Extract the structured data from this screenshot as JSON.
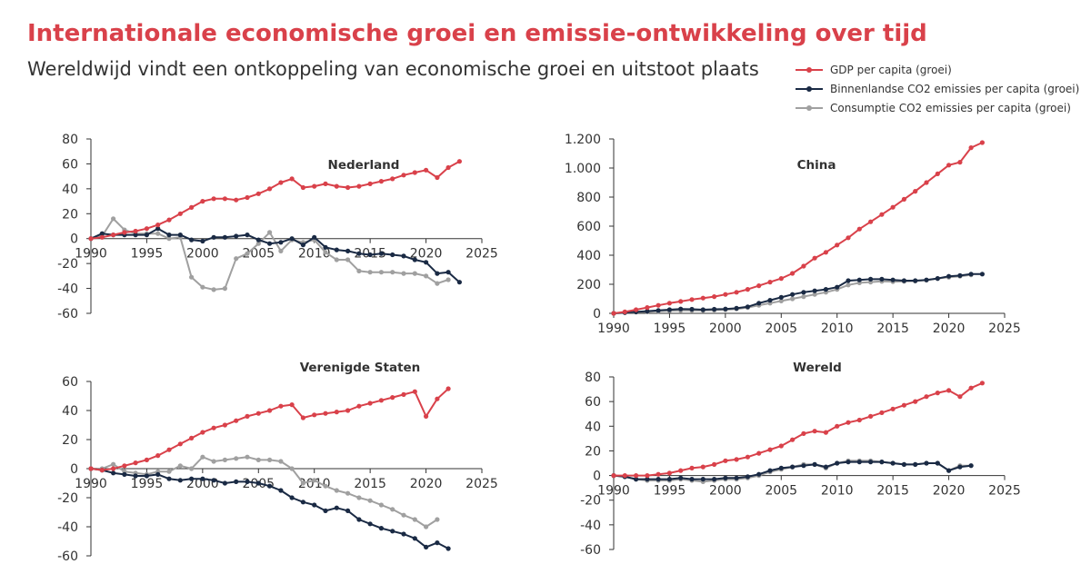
{
  "title": "Internationale economische groei en emissie-ontwikkeling over tijd",
  "subtitle": "Wereldwijd vindt een ontkoppeling van economische groei en uitstoot plaats",
  "legend": [
    {
      "name": "GDP per capita (groei)",
      "color": "#d9414a"
    },
    {
      "name": "Binnenlandse CO2 emissies per capita (groei)",
      "color": "#1a2a44"
    },
    {
      "name": "Consumptie CO2 emissies per capita (groei)",
      "color": "#a0a0a0"
    }
  ],
  "colors": {
    "gdp": "#d9414a",
    "binnenlands": "#1a2a44",
    "consumptie": "#a0a0a0",
    "axis": "#333333"
  },
  "chart_data": [
    {
      "type": "line",
      "title": "Nederland",
      "xlim": [
        1990,
        2025
      ],
      "ylim": [
        -60,
        80
      ],
      "xticks": [
        1990,
        1995,
        2000,
        2005,
        2010,
        2015,
        2020,
        2025
      ],
      "yticks": [
        -60,
        -40,
        -20,
        0,
        20,
        40,
        60,
        80
      ],
      "series": [
        {
          "name": "GDP per capita (groei)",
          "x_start": 1990,
          "values": [
            0,
            1,
            3,
            5,
            6,
            8,
            11,
            15,
            20,
            25,
            30,
            32,
            32,
            31,
            33,
            36,
            40,
            45,
            48,
            41,
            42,
            44,
            42,
            41,
            42,
            44,
            46,
            48,
            51,
            53,
            55,
            49,
            57,
            62
          ]
        },
        {
          "name": "Binnenlandse CO2 emissies per capita (groei)",
          "x_start": 1990,
          "values": [
            0,
            4,
            3,
            3,
            3,
            3,
            8,
            3,
            3,
            -1,
            -2,
            1,
            1,
            2,
            3,
            -1,
            -4,
            -3,
            0,
            -5,
            1,
            -7,
            -9,
            -10,
            -12,
            -13,
            -12,
            -13,
            -14,
            -17,
            -19,
            -28,
            -27,
            -35
          ]
        },
        {
          "name": "Consumptie CO2 emissies per capita (groei)",
          "x_start": 1990,
          "values": [
            0,
            2,
            16,
            7,
            4,
            4,
            4,
            0,
            1,
            -31,
            -39,
            -41,
            -40,
            -16,
            -12,
            -4,
            5,
            -10,
            -1,
            -3,
            -1,
            -11,
            -17,
            -17,
            -26,
            -27,
            -27,
            -27,
            -28,
            -28,
            -30,
            -36,
            -33
          ]
        }
      ]
    },
    {
      "type": "line",
      "title": "China",
      "xlim": [
        1990,
        2025
      ],
      "ylim": [
        0,
        1200
      ],
      "xticks": [
        1990,
        1995,
        2000,
        2005,
        2010,
        2015,
        2020,
        2025
      ],
      "yticks": [
        0,
        200,
        400,
        600,
        800,
        1000,
        1200
      ],
      "ytick_labels": [
        "0",
        "200",
        "400",
        "600",
        "800",
        "1.000",
        "1.200"
      ],
      "series": [
        {
          "name": "GDP per capita (groei)",
          "x_start": 1990,
          "values": [
            0,
            10,
            25,
            40,
            55,
            70,
            82,
            95,
            105,
            115,
            130,
            145,
            165,
            190,
            215,
            240,
            275,
            325,
            380,
            420,
            470,
            520,
            580,
            630,
            680,
            730,
            785,
            840,
            900,
            960,
            1020,
            1040,
            1140,
            1175
          ]
        },
        {
          "name": "Binnenlandse CO2 emissies per capita (groei)",
          "x_start": 1990,
          "values": [
            0,
            5,
            10,
            15,
            20,
            25,
            30,
            28,
            25,
            28,
            30,
            35,
            45,
            70,
            90,
            110,
            130,
            145,
            155,
            165,
            180,
            225,
            230,
            235,
            235,
            230,
            225,
            225,
            230,
            240,
            255,
            260,
            270,
            270
          ]
        },
        {
          "name": "Consumptie CO2 emissies per capita (groei)",
          "x_start": 1990,
          "values": [
            0,
            5,
            8,
            10,
            15,
            18,
            20,
            20,
            20,
            22,
            25,
            30,
            40,
            55,
            70,
            85,
            100,
            115,
            130,
            145,
            165,
            195,
            210,
            215,
            220,
            218,
            220,
            222,
            228,
            240,
            248,
            255,
            265
          ]
        }
      ]
    },
    {
      "type": "line",
      "title": "Verenigde Staten",
      "xlim": [
        1990,
        2025
      ],
      "ylim": [
        -60,
        60
      ],
      "xticks": [
        1990,
        1995,
        2000,
        2005,
        2010,
        2015,
        2020,
        2025
      ],
      "yticks": [
        -60,
        -40,
        -20,
        0,
        20,
        40,
        60
      ],
      "series": [
        {
          "name": "GDP per capita (groei)",
          "x_start": 1990,
          "values": [
            0,
            -1,
            0,
            2,
            4,
            6,
            9,
            13,
            17,
            21,
            25,
            28,
            30,
            33,
            36,
            38,
            40,
            43,
            44,
            35,
            37,
            38,
            39,
            40,
            43,
            45,
            47,
            49,
            51,
            53,
            36,
            48,
            55
          ]
        },
        {
          "name": "Binnenlandse CO2 emissies per capita (groei)",
          "x_start": 1990,
          "values": [
            0,
            -1,
            -3,
            -4,
            -5,
            -5,
            -4,
            -7,
            -8,
            -7,
            -7,
            -8,
            -10,
            -9,
            -9,
            -10,
            -12,
            -15,
            -20,
            -23,
            -25,
            -29,
            -27,
            -29,
            -35,
            -38,
            -41,
            -43,
            -45,
            -48,
            -54,
            -51,
            -55
          ]
        },
        {
          "name": "Consumptie CO2 emissies per capita (groei)",
          "x_start": 1990,
          "values": [
            0,
            0,
            3,
            -2,
            -3,
            -4,
            -2,
            -2,
            2,
            0,
            8,
            5,
            6,
            7,
            8,
            6,
            6,
            5,
            0,
            -10,
            -8,
            -12,
            -15,
            -17,
            -20,
            -22,
            -25,
            -28,
            -32,
            -35,
            -40,
            -35
          ]
        }
      ]
    },
    {
      "type": "line",
      "title": "Wereld",
      "xlim": [
        1990,
        2025
      ],
      "ylim": [
        -60,
        80
      ],
      "xticks": [
        1990,
        1995,
        2000,
        2005,
        2010,
        2015,
        2020,
        2025
      ],
      "yticks": [
        -60,
        -40,
        -20,
        0,
        20,
        40,
        60,
        80
      ],
      "series": [
        {
          "name": "GDP per capita (groei)",
          "x_start": 1990,
          "values": [
            0,
            0,
            0,
            0,
            1,
            2,
            4,
            6,
            7,
            9,
            12,
            13,
            15,
            18,
            21,
            24,
            29,
            34,
            36,
            35,
            40,
            43,
            45,
            48,
            51,
            54,
            57,
            60,
            64,
            67,
            69,
            64,
            71,
            75
          ]
        },
        {
          "name": "Binnenlandse CO2 emissies per capita (groei)",
          "x_start": 1990,
          "values": [
            0,
            -1,
            -3,
            -3,
            -3,
            -3,
            -2,
            -3,
            -3,
            -3,
            -2,
            -2,
            -1,
            1,
            4,
            6,
            7,
            8,
            9,
            7,
            10,
            11,
            11,
            11,
            11,
            10,
            9,
            9,
            10,
            10,
            4,
            7,
            8
          ]
        },
        {
          "name": "Consumptie CO2 emissies per capita (groei)",
          "x_start": 1990,
          "values": [
            0,
            -1,
            -3,
            -4,
            -4,
            -4,
            -3,
            -4,
            -5,
            -4,
            -3,
            -3,
            -2,
            0,
            3,
            5,
            7,
            9,
            9,
            6,
            10,
            12,
            12,
            12,
            11,
            10,
            9,
            9,
            10,
            10,
            4,
            8,
            8
          ]
        }
      ]
    }
  ]
}
